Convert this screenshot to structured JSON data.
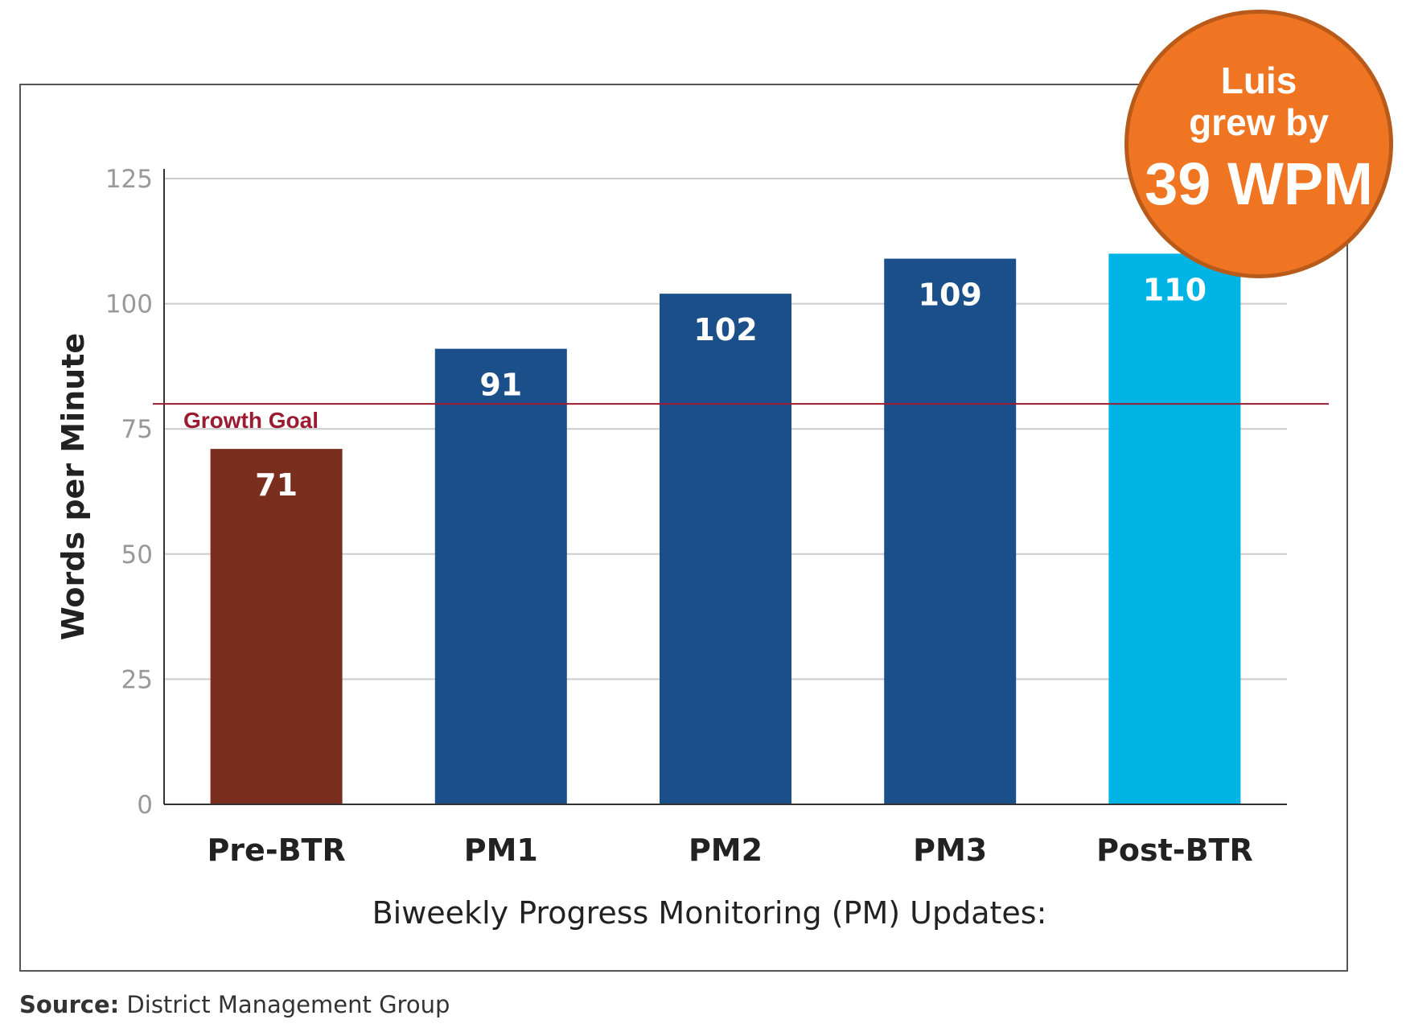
{
  "chart_data": {
    "type": "bar",
    "categories": [
      "Pre-BTR",
      "PM1",
      "PM2",
      "PM3",
      "Post-BTR"
    ],
    "values": [
      71,
      91,
      102,
      109,
      110
    ],
    "data_labels": [
      "71",
      "91",
      "102",
      "109",
      "110"
    ],
    "bar_colors": [
      "#7a2e1e",
      "#1b4f8a",
      "#1b4f8a",
      "#1b4f8a",
      "#00b5e6"
    ],
    "title": "",
    "xlabel": "Biweekly Progress Monitoring (PM) Updates:",
    "ylabel": "Words per Minute",
    "ylim": [
      0,
      125
    ],
    "yticks": [
      0,
      25,
      50,
      75,
      100,
      125
    ],
    "ytick_labels": [
      "0",
      "25",
      "50",
      "75",
      "100",
      "125"
    ],
    "grid": true,
    "reference_line": {
      "label": "Growth Goal",
      "value": 80,
      "color": "#9b1b30"
    }
  },
  "badge": {
    "line1": "Luis",
    "line2": "grew by",
    "line3": "39 WPM",
    "color": "#f07522"
  },
  "source": {
    "label": "Source:",
    "text": " District Management Group"
  }
}
